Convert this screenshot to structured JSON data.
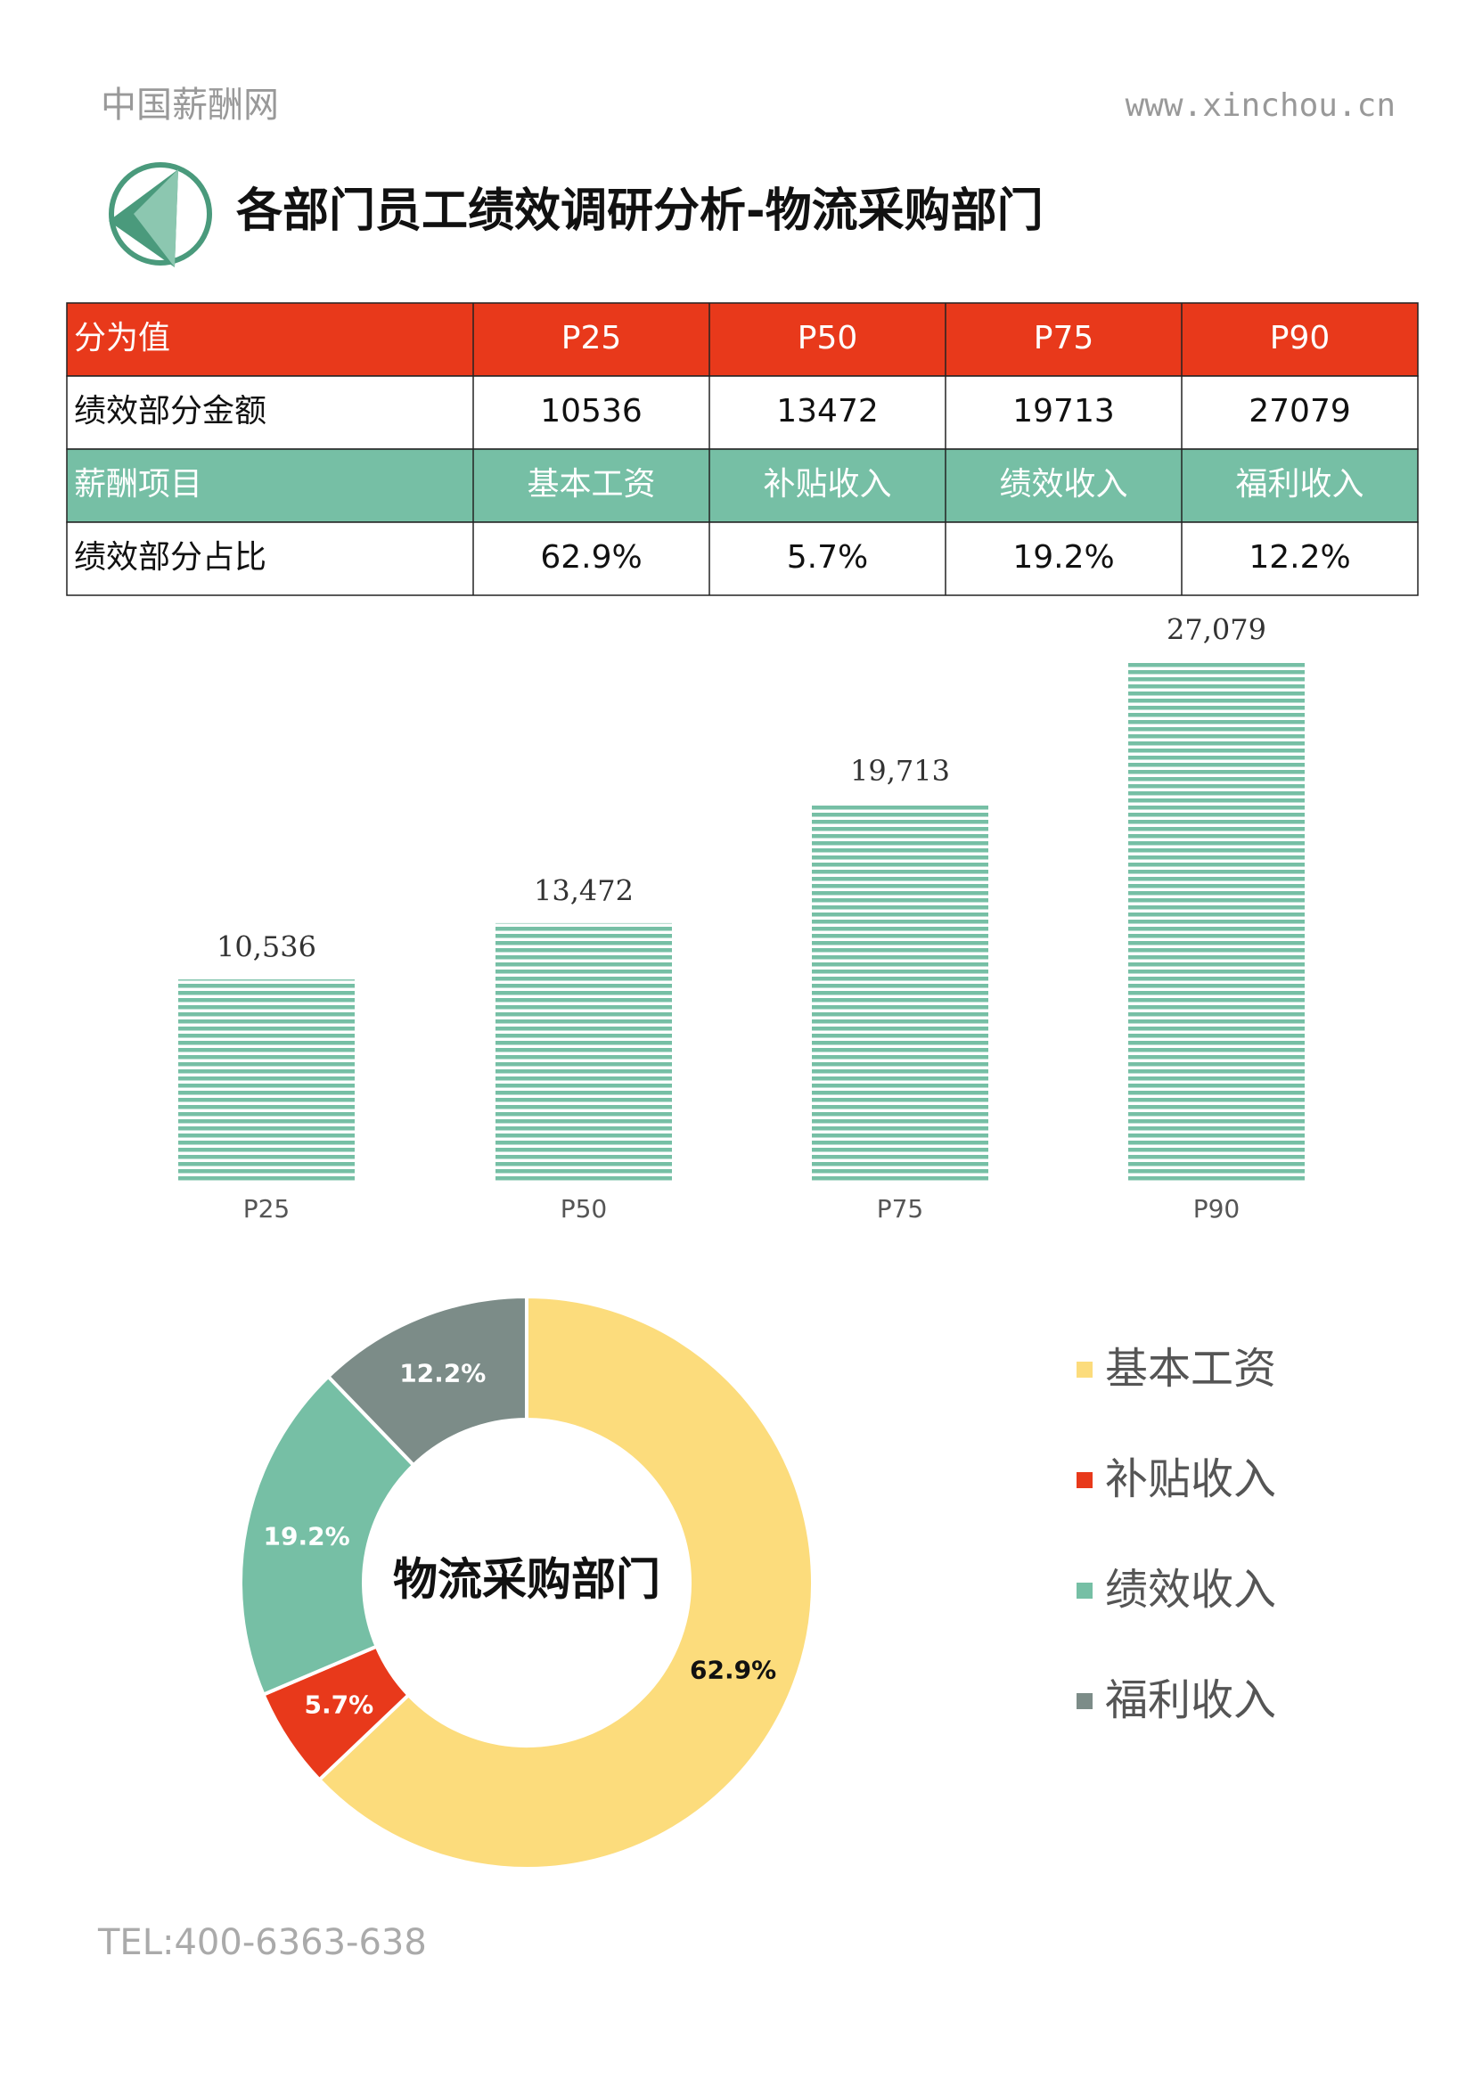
{
  "header": {
    "site_name": "中国薪酬网",
    "url": "www.xinchou.cn"
  },
  "title": "各部门员工绩效调研分析-物流采购部门",
  "table": {
    "rows": [
      [
        "分为值",
        "P25",
        "P50",
        "P75",
        "P90"
      ],
      [
        "绩效部分金额",
        10536,
        13472,
        19713,
        27079
      ],
      [
        "薪酬项目",
        "基本工资",
        "补贴收入",
        "绩效收入",
        "福利收入"
      ],
      [
        "绩效部分占比",
        "62.9%",
        "5.7%",
        "19.2%",
        "12.2%"
      ]
    ]
  },
  "bar_chart": {
    "type": "bar",
    "categories": [
      "P25",
      "P50",
      "P75",
      "P90"
    ],
    "values": [
      10536,
      13472,
      19713,
      27079
    ],
    "value_labels": [
      "10,536",
      "13,472",
      "19,713",
      "27,079"
    ],
    "color": "#76bfa5",
    "ylim": [
      0,
      30000
    ]
  },
  "donut_chart": {
    "type": "donut",
    "center_label": "物流采购部门",
    "categories": [
      "基本工资",
      "补贴收入",
      "绩效收入",
      "福利收入"
    ],
    "values": [
      62.9,
      5.7,
      19.2,
      12.2
    ],
    "value_labels": [
      "62.9%",
      "5.7%",
      "19.2%",
      "12.2%"
    ],
    "colors": [
      "#fcdc7c",
      "#e8391b",
      "#76bfa5",
      "#7c8c88"
    ]
  },
  "footer": {
    "tel": "TEL:400-6363-638"
  }
}
